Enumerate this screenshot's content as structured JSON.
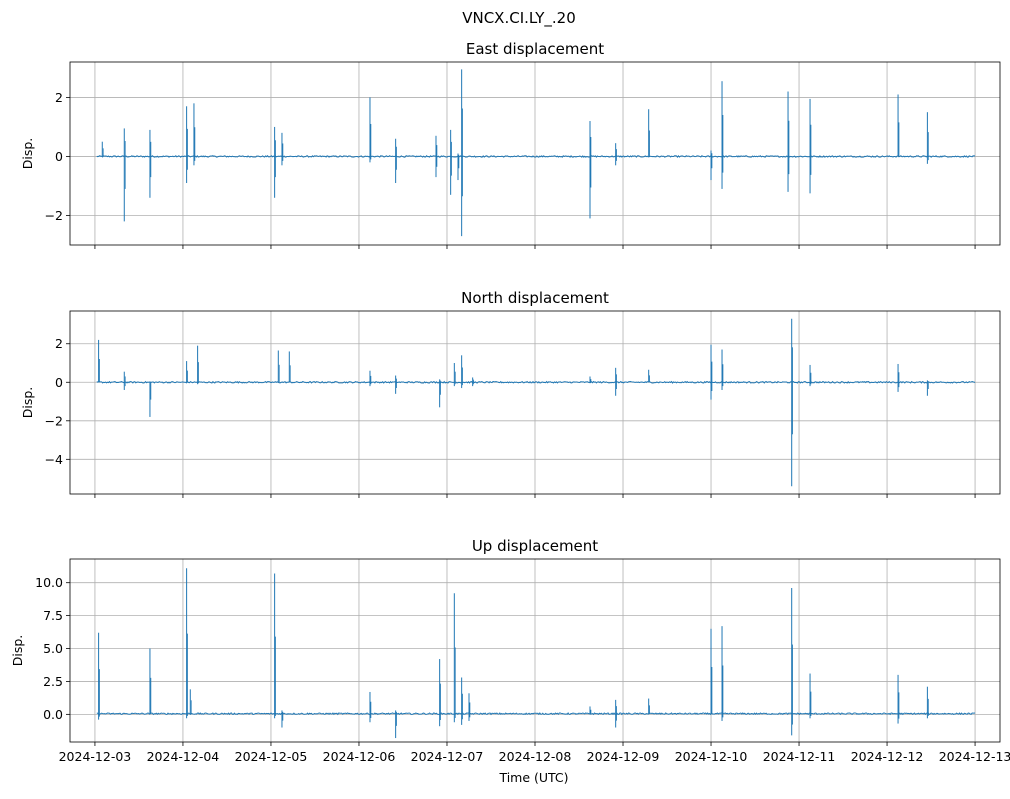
{
  "suptitle": "VNCX.CI.LY_.20",
  "xlabel": "Time (UTC)",
  "x_ticks": [
    "2024-12-03",
    "2024-12-04",
    "2024-12-05",
    "2024-12-06",
    "2024-12-07",
    "2024-12-08",
    "2024-12-09",
    "2024-12-10",
    "2024-12-11",
    "2024-12-12",
    "2024-12-13"
  ],
  "series_color": "#1f77b4",
  "chart_data": [
    {
      "type": "line",
      "title": "East displacement",
      "ylabel": "Disp.",
      "xlim": [
        "2024-12-02T17:12",
        "2024-12-13T06:48"
      ],
      "ylim": [
        -3.0,
        3.2
      ],
      "yticks": [
        -2,
        0,
        2
      ],
      "ytick_labels": [
        "−2",
        "0",
        "2"
      ],
      "grid": true,
      "baseline": 0,
      "spikes": [
        {
          "x": "2024-12-03T02:00",
          "min": 0,
          "max": 0.5
        },
        {
          "x": "2024-12-03T08:00",
          "min": -2.2,
          "max": 0.95
        },
        {
          "x": "2024-12-03T15:00",
          "min": -1.4,
          "max": 0.9
        },
        {
          "x": "2024-12-04T01:00",
          "min": -0.9,
          "max": 1.7
        },
        {
          "x": "2024-12-04T03:00",
          "min": -0.3,
          "max": 1.8
        },
        {
          "x": "2024-12-05T01:00",
          "min": -1.4,
          "max": 1.0
        },
        {
          "x": "2024-12-05T03:00",
          "min": -0.3,
          "max": 0.8
        },
        {
          "x": "2024-12-06T03:00",
          "min": -0.2,
          "max": 2.0
        },
        {
          "x": "2024-12-06T10:00",
          "min": -0.9,
          "max": 0.6
        },
        {
          "x": "2024-12-06T21:00",
          "min": -0.7,
          "max": 0.7
        },
        {
          "x": "2024-12-07T01:00",
          "min": -1.3,
          "max": 0.9
        },
        {
          "x": "2024-12-07T03:00",
          "min": -0.8,
          "max": 0.1
        },
        {
          "x": "2024-12-07T04:00",
          "min": -2.7,
          "max": 2.95
        },
        {
          "x": "2024-12-08T15:00",
          "min": -2.1,
          "max": 1.2
        },
        {
          "x": "2024-12-08T22:00",
          "min": -0.3,
          "max": 0.45
        },
        {
          "x": "2024-12-09T07:00",
          "min": 0,
          "max": 1.6
        },
        {
          "x": "2024-12-10T00:00",
          "min": -0.8,
          "max": 0.2
        },
        {
          "x": "2024-12-10T03:00",
          "min": -1.1,
          "max": 2.55
        },
        {
          "x": "2024-12-10T21:00",
          "min": -1.2,
          "max": 2.2
        },
        {
          "x": "2024-12-11T03:00",
          "min": -1.25,
          "max": 1.95
        },
        {
          "x": "2024-12-12T03:00",
          "min": 0,
          "max": 2.1
        },
        {
          "x": "2024-12-12T11:00",
          "min": -0.25,
          "max": 1.5
        }
      ]
    },
    {
      "type": "line",
      "title": "North displacement",
      "ylabel": "Disp.",
      "xlim": [
        "2024-12-02T17:12",
        "2024-12-13T06:48"
      ],
      "ylim": [
        -5.8,
        3.7
      ],
      "yticks": [
        -4,
        -2,
        0,
        2
      ],
      "ytick_labels": [
        "−4",
        "−2",
        "0",
        "2"
      ],
      "grid": true,
      "baseline": 0,
      "spikes": [
        {
          "x": "2024-12-03T01:00",
          "min": 0,
          "max": 2.2
        },
        {
          "x": "2024-12-03T08:00",
          "min": -0.4,
          "max": 0.55
        },
        {
          "x": "2024-12-03T15:00",
          "min": -1.8,
          "max": 0
        },
        {
          "x": "2024-12-04T01:00",
          "min": 0,
          "max": 1.1
        },
        {
          "x": "2024-12-04T04:00",
          "min": -0.1,
          "max": 1.9
        },
        {
          "x": "2024-12-05T02:00",
          "min": 0,
          "max": 1.65
        },
        {
          "x": "2024-12-05T05:00",
          "min": 0,
          "max": 1.6
        },
        {
          "x": "2024-12-06T03:00",
          "min": -0.2,
          "max": 0.6
        },
        {
          "x": "2024-12-06T10:00",
          "min": -0.6,
          "max": 0.35
        },
        {
          "x": "2024-12-06T22:00",
          "min": -1.3,
          "max": 0.15
        },
        {
          "x": "2024-12-07T02:00",
          "min": -0.2,
          "max": 1.0
        },
        {
          "x": "2024-12-07T04:00",
          "min": -0.3,
          "max": 1.4
        },
        {
          "x": "2024-12-07T07:00",
          "min": -0.2,
          "max": 0.25
        },
        {
          "x": "2024-12-08T15:00",
          "min": 0,
          "max": 0.3
        },
        {
          "x": "2024-12-08T22:00",
          "min": -0.7,
          "max": 0.75
        },
        {
          "x": "2024-12-09T07:00",
          "min": 0,
          "max": 0.65
        },
        {
          "x": "2024-12-10T00:00",
          "min": -0.9,
          "max": 1.95
        },
        {
          "x": "2024-12-10T03:00",
          "min": -0.4,
          "max": 1.7
        },
        {
          "x": "2024-12-10T22:00",
          "min": -5.4,
          "max": 3.3
        },
        {
          "x": "2024-12-11T03:00",
          "min": -0.2,
          "max": 0.9
        },
        {
          "x": "2024-12-12T03:00",
          "min": -0.5,
          "max": 0.95
        },
        {
          "x": "2024-12-12T11:00",
          "min": -0.7,
          "max": 0.1
        }
      ]
    },
    {
      "type": "line",
      "title": "Up displacement",
      "ylabel": "Disp.",
      "xlim": [
        "2024-12-02T17:12",
        "2024-12-13T06:48"
      ],
      "ylim": [
        -2.1,
        11.8
      ],
      "yticks": [
        0.0,
        2.5,
        5.0,
        7.5,
        10.0
      ],
      "ytick_labels": [
        "0.0",
        "2.5",
        "5.0",
        "7.5",
        "10.0"
      ],
      "grid": true,
      "baseline": 0.05,
      "spikes": [
        {
          "x": "2024-12-03T01:00",
          "min": -0.4,
          "max": 6.2
        },
        {
          "x": "2024-12-03T15:00",
          "min": 0,
          "max": 5.0
        },
        {
          "x": "2024-12-04T01:00",
          "min": -0.3,
          "max": 11.1
        },
        {
          "x": "2024-12-04T02:00",
          "min": 0,
          "max": 1.9
        },
        {
          "x": "2024-12-05T01:00",
          "min": -0.3,
          "max": 10.7
        },
        {
          "x": "2024-12-05T03:00",
          "min": -1.0,
          "max": 0.3
        },
        {
          "x": "2024-12-06T03:00",
          "min": -0.6,
          "max": 1.7
        },
        {
          "x": "2024-12-06T10:00",
          "min": -1.8,
          "max": 0.3
        },
        {
          "x": "2024-12-06T22:00",
          "min": -0.9,
          "max": 4.2
        },
        {
          "x": "2024-12-07T02:00",
          "min": -0.6,
          "max": 9.2
        },
        {
          "x": "2024-12-07T04:00",
          "min": -0.8,
          "max": 2.8
        },
        {
          "x": "2024-12-07T06:00",
          "min": -0.5,
          "max": 1.6
        },
        {
          "x": "2024-12-08T15:00",
          "min": 0,
          "max": 0.6
        },
        {
          "x": "2024-12-08T22:00",
          "min": -1.0,
          "max": 1.1
        },
        {
          "x": "2024-12-09T07:00",
          "min": 0,
          "max": 1.2
        },
        {
          "x": "2024-12-10T00:00",
          "min": 0,
          "max": 6.5
        },
        {
          "x": "2024-12-10T03:00",
          "min": -0.5,
          "max": 6.7
        },
        {
          "x": "2024-12-10T22:00",
          "min": -1.6,
          "max": 9.6
        },
        {
          "x": "2024-12-11T03:00",
          "min": -0.3,
          "max": 3.1
        },
        {
          "x": "2024-12-12T03:00",
          "min": -0.7,
          "max": 3.0
        },
        {
          "x": "2024-12-12T11:00",
          "min": -0.3,
          "max": 2.1
        }
      ]
    }
  ]
}
